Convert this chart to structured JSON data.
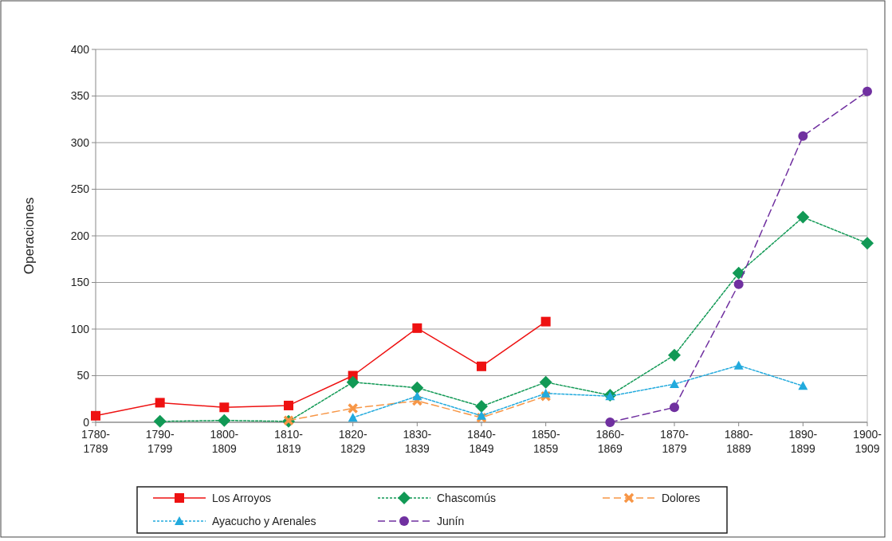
{
  "chart_data": {
    "type": "line",
    "ylabel": "Operaciones",
    "categories": [
      "1780-\n1789",
      "1790-\n1799",
      "1800-\n1809",
      "1810-\n1819",
      "1820-\n1829",
      "1830-\n1839",
      "1840-\n1849",
      "1850-\n1859",
      "1860-\n1869",
      "1870-\n1879",
      "1880-\n1889",
      "1890-\n1899",
      "1900-\n1909"
    ],
    "series": [
      {
        "name": "Los Arroyos",
        "color": "#ee1111",
        "marker": "square",
        "line_style": "solid",
        "values": [
          7,
          21,
          16,
          18,
          50,
          101,
          60,
          108,
          null,
          null,
          null,
          null,
          null
        ]
      },
      {
        "name": "Chascomús",
        "color": "#119955",
        "marker": "diamond",
        "line_style": "dotted",
        "values": [
          null,
          1,
          2,
          1,
          43,
          37,
          17,
          43,
          29,
          72,
          160,
          220,
          192
        ]
      },
      {
        "name": "Dolores",
        "color": "#f79646",
        "marker": "cross",
        "line_style": "dashed",
        "values": [
          null,
          null,
          null,
          2,
          15,
          23,
          5,
          28,
          null,
          null,
          null,
          null,
          null
        ]
      },
      {
        "name": "Ayacucho y Arenales",
        "color": "#22aadd",
        "marker": "triangle",
        "line_style": "dotted",
        "values": [
          null,
          null,
          null,
          null,
          5,
          28,
          7,
          31,
          28,
          41,
          61,
          39,
          null
        ]
      },
      {
        "name": "Junín",
        "color": "#7030a0",
        "marker": "circle",
        "line_style": "dashed",
        "values": [
          null,
          null,
          null,
          null,
          null,
          null,
          null,
          null,
          0,
          16,
          148,
          307,
          355
        ]
      }
    ],
    "ylim": [
      0,
      400
    ],
    "yticks": [
      0,
      50,
      100,
      150,
      200,
      250,
      300,
      350,
      400
    ],
    "grid": "y",
    "legend": "bottom"
  }
}
